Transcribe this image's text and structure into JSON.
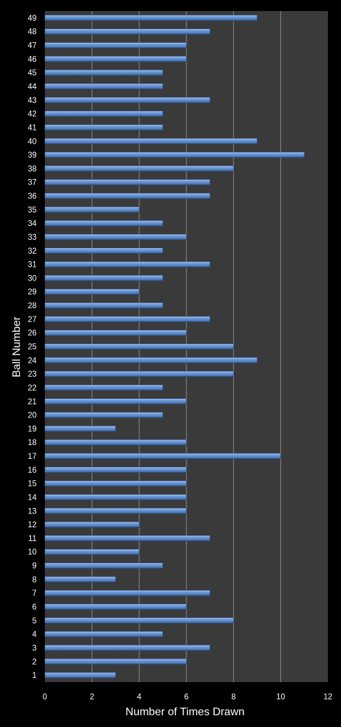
{
  "chart_data": {
    "type": "bar",
    "orientation": "horizontal",
    "title": "",
    "xlabel": "Number of Times Drawn",
    "ylabel": "Ball Number",
    "xlim": [
      0,
      12
    ],
    "xticks": [
      0,
      2,
      4,
      6,
      8,
      10,
      12
    ],
    "grid": true,
    "legend": "none",
    "colors": {
      "background": "#000000",
      "plot_area": "#3a3a3a",
      "gridline": "#8c8c8c",
      "bar_light": "#a9c4f0",
      "bar_mid": "#4f81bd",
      "bar_dark": "#2c4d80",
      "text": "#ffffff"
    },
    "categories": [
      "1",
      "2",
      "3",
      "4",
      "5",
      "6",
      "7",
      "8",
      "9",
      "10",
      "11",
      "12",
      "13",
      "14",
      "15",
      "16",
      "17",
      "18",
      "19",
      "20",
      "21",
      "22",
      "23",
      "24",
      "25",
      "26",
      "27",
      "28",
      "29",
      "30",
      "31",
      "32",
      "33",
      "34",
      "35",
      "36",
      "37",
      "38",
      "39",
      "40",
      "41",
      "42",
      "43",
      "44",
      "45",
      "46",
      "47",
      "48",
      "49"
    ],
    "values": [
      3,
      6,
      7,
      5,
      8,
      6,
      7,
      3,
      5,
      4,
      7,
      4,
      6,
      6,
      6,
      6,
      10,
      6,
      3,
      5,
      6,
      5,
      8,
      9,
      8,
      6,
      7,
      5,
      4,
      5,
      7,
      5,
      6,
      5,
      4,
      7,
      7,
      8,
      11,
      9,
      5,
      5,
      7,
      5,
      5,
      6,
      6,
      7,
      9
    ]
  }
}
